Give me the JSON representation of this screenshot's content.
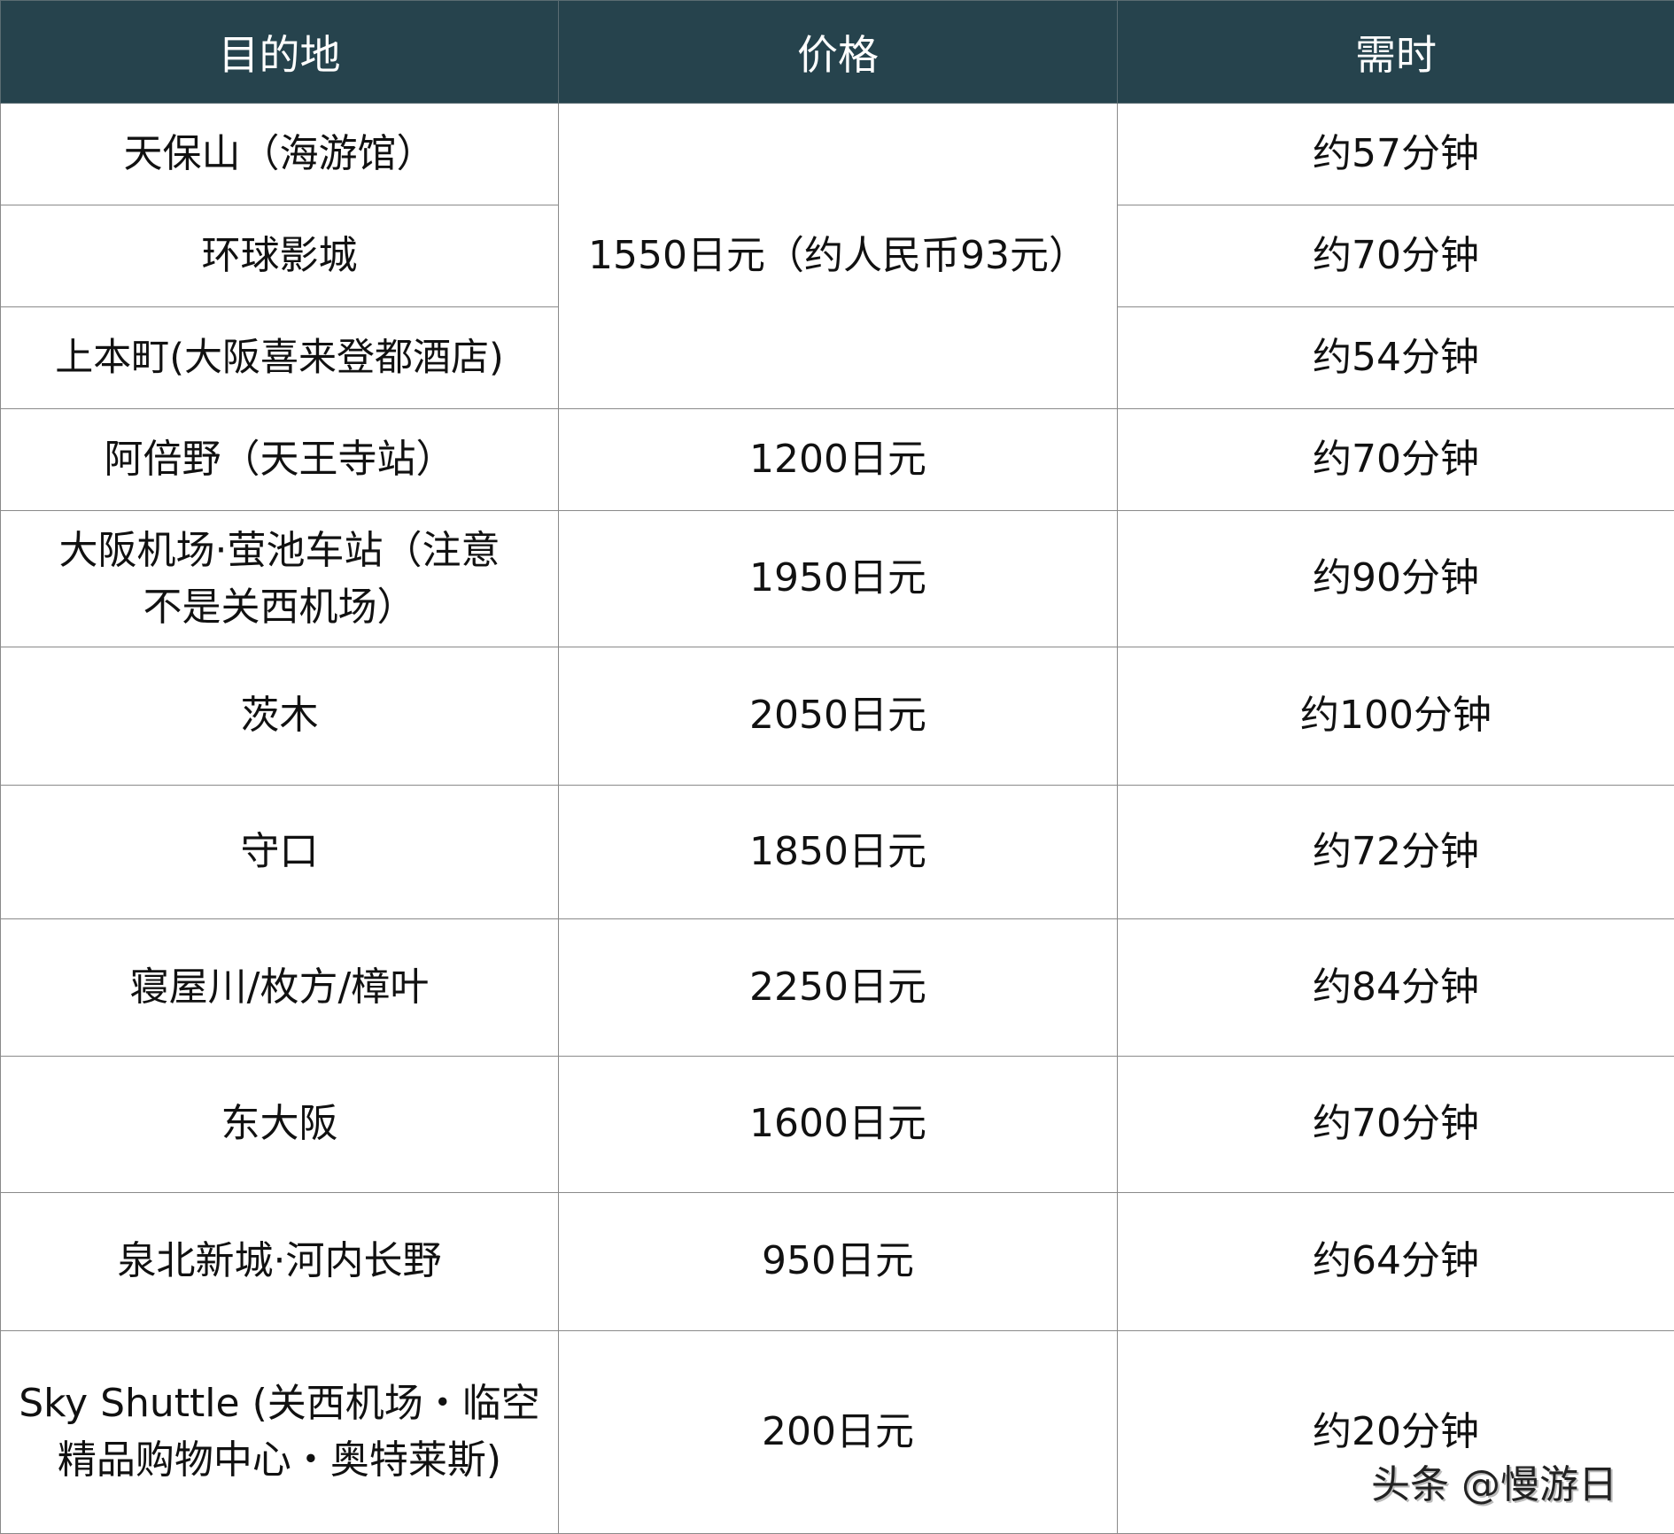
{
  "headers": [
    "目的地",
    "价格",
    "需时"
  ],
  "rows": [
    {
      "destination": "天保山（海游馆）",
      "price": "1550日元（约人民币93元）",
      "time": "约57分钟"
    },
    {
      "destination": "环球影城",
      "time": "约70分钟"
    },
    {
      "destination": "上本町(大阪喜来登都酒店)",
      "time": "约54分钟"
    },
    {
      "destination": "阿倍野（天王寺站）",
      "price": "1200日元",
      "time": "约70分钟"
    },
    {
      "destination": "大阪机场·萤池车站（注意不是关西机场）",
      "price": "1950日元",
      "time": "约90分钟"
    },
    {
      "destination": "茨木",
      "price": "2050日元",
      "time": "约100分钟"
    },
    {
      "destination": "守口",
      "price": "1850日元",
      "time": "约72分钟"
    },
    {
      "destination": "寝屋川/枚方/樟叶",
      "price": "2250日元",
      "time": "约84分钟"
    },
    {
      "destination": "东大阪",
      "price": "1600日元",
      "time": "约70分钟"
    },
    {
      "destination": "泉北新城·河内长野",
      "price": "950日元",
      "time": "约64分钟"
    },
    {
      "destination": "Sky Shuttle (关西机场・临空精品购物中心・奥特莱斯)",
      "price": "200日元",
      "time": "约20分钟"
    }
  ],
  "watermark": "头条 @慢游日"
}
